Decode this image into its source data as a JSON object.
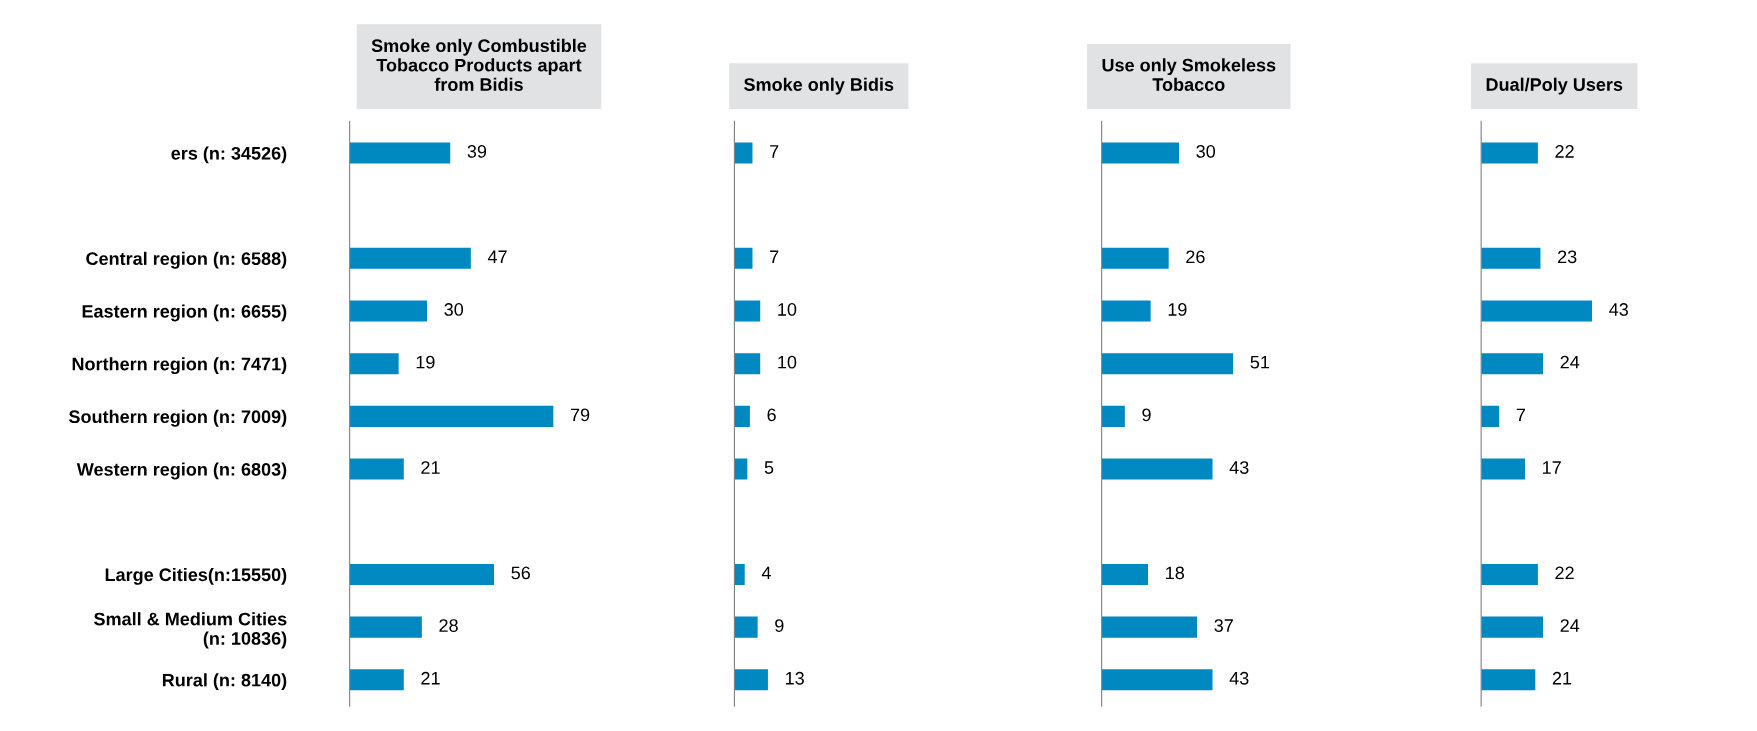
{
  "chart_data": [
    {
      "type": "bar",
      "orientation": "horizontal",
      "title": "Smoke only Combustible\nTobacco Products apart\nfrom Bidis",
      "categories": [
        "ers (n: 34526)",
        null,
        "Central region (n: 6588)",
        "Eastern region (n: 6655)",
        "Northern region (n: 7471)",
        "Southern region (n: 7009)",
        "Western region (n: 6803)",
        null,
        "Large Cities(n:15550)",
        "Small & Medium Cities\n(n: 10836)",
        "Rural (n: 8140)"
      ],
      "values": [
        39,
        null,
        47,
        30,
        19,
        79,
        21,
        null,
        56,
        28,
        21
      ],
      "color": "#0088c0",
      "data_labels": true,
      "tick_labels": "y"
    },
    {
      "type": "bar",
      "orientation": "horizontal",
      "title": "Smoke only Bidis",
      "values": [
        7,
        null,
        7,
        10,
        10,
        6,
        5,
        null,
        4,
        9,
        13
      ],
      "color": "#0088c0",
      "data_labels": true,
      "tick_labels": false
    },
    {
      "type": "bar",
      "orientation": "horizontal",
      "title": "Use only Smokeless\nTobacco",
      "values": [
        30,
        null,
        26,
        19,
        51,
        9,
        43,
        null,
        18,
        37,
        43
      ],
      "color": "#0088c0",
      "data_labels": true,
      "tick_labels": false
    },
    {
      "type": "bar",
      "orientation": "horizontal",
      "title": "Dual/Poly Users",
      "values": [
        22,
        null,
        23,
        43,
        24,
        7,
        17,
        null,
        22,
        24,
        21
      ],
      "color": "#0088c0",
      "data_labels": true,
      "tick_labels": false
    }
  ]
}
